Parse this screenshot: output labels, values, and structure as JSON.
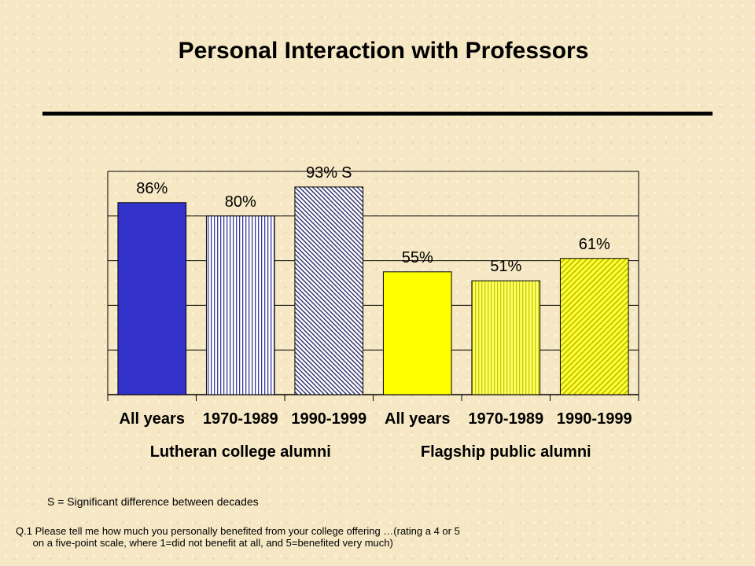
{
  "title": "Personal Interaction with Professors",
  "footnote_s": "S = Significant difference between decades",
  "question_line1": "Q.1 Please tell me how much you personally benefited from your college offering …(rating a 4 or 5",
  "question_line2": "      on a five-point scale, where 1=did not benefit at all, and 5=benefited very much)",
  "colors": {
    "lutheran_all_years": "#3333cc",
    "lutheran_stripe": "#3a3a9a",
    "flagship_all_years": "#ffff00",
    "flagship_stripe": "#c8c800"
  },
  "chart_data": {
    "type": "bar",
    "title": "Personal Interaction with Professors",
    "categories": [
      "All years",
      "1970-1989",
      "1990-1999",
      "All years",
      "1970-1989",
      "1990-1999"
    ],
    "groups": [
      {
        "name": "Lutheran college alumni",
        "categories": [
          0,
          1,
          2
        ]
      },
      {
        "name": "Flagship public alumni",
        "categories": [
          3,
          4,
          5
        ]
      }
    ],
    "values": [
      86,
      80,
      93,
      55,
      51,
      61
    ],
    "value_labels": [
      "86%",
      "80%",
      "93%",
      "55%",
      "51%",
      "61%"
    ],
    "annotations": [
      "",
      "",
      "S",
      "",
      "",
      ""
    ],
    "fills": [
      "solid",
      "vertical-stripes",
      "diagonal-hatch",
      "solid",
      "vertical-stripes",
      "diagonal-hatch"
    ],
    "ylim": [
      0,
      100
    ],
    "grid": true,
    "ytick_step": 20,
    "legend": "none"
  }
}
